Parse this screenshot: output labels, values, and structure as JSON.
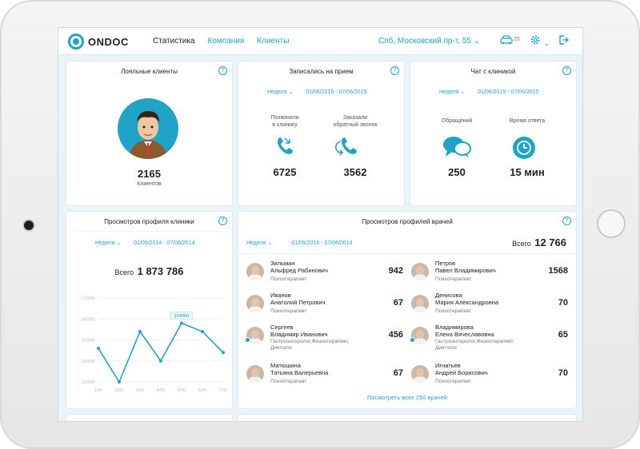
{
  "app": {
    "logo": "ONDOC",
    "nav": [
      "Статистика",
      "Компания",
      "Клиенты"
    ],
    "address": "Спб, Московский пр-т, 55 ⌄",
    "notification_count": "25",
    "icons": {
      "car": "car-icon",
      "settings": "gear-icon",
      "logout": "exit-icon"
    }
  },
  "loyal": {
    "title": "Лояльные клиенты",
    "count": "2165",
    "count_label": "Клиентов"
  },
  "appointments": {
    "title": "Записались на прием",
    "period": "Неделя ⌄",
    "dates": "01/06/2015 - 07/06/2015",
    "called_label": "Позвонили\nв клинику",
    "callback_label": "Заказали\nобратный звонок",
    "called": "6725",
    "callback": "3562"
  },
  "chat": {
    "title": "Чат с клиникой",
    "period": "Неделя ⌄",
    "dates": "01/06/2015 - 07/06/2015",
    "requests_label": "Обращений",
    "response_label": "Время ответа",
    "requests": "250",
    "response": "15 мин"
  },
  "clinic_views": {
    "title": "Просмотров профиля клиники",
    "period": "Неделя ⌄",
    "dates": "01/05/2014 - 07/06/2014",
    "total_label": "Всего",
    "total": "1 873 786"
  },
  "chart_data": {
    "type": "line",
    "x": [
      "1/05",
      "2/05",
      "3/05",
      "4/05",
      "5/05",
      "6/05",
      "7/05"
    ],
    "values": [
      158000,
      150000,
      162000,
      155000,
      164000,
      162000,
      157000
    ],
    "point_label": "164000",
    "ylim": [
      150000,
      170000
    ],
    "yticks": [
      "170000",
      "165000",
      "160000",
      "155000",
      "150000"
    ],
    "color": "#1fa3c7",
    "grid": true
  },
  "doctor_views": {
    "title": "Просмотров профилей врачей",
    "period": "Неделя ⌄",
    "dates": "01/05/2014 - 07/06/2014",
    "total_label": "Всего",
    "total": "12 766",
    "link": "Посмотреть всех 250 врачей",
    "doctors": [
      {
        "name": "Зильман\nАльфред Рабинович",
        "spec": "Психотерапевт",
        "count": "942"
      },
      {
        "name": "Петров\nПавел Владимирович",
        "spec": "Психотерапевт",
        "count": "1568"
      },
      {
        "name": "Иванов\nАнатолий Петрович",
        "spec": "Психотерапевт",
        "count": "67"
      },
      {
        "name": "Денисова\nМария Александровна",
        "spec": "Психотерапевт",
        "count": "70"
      },
      {
        "name": "Сергеев\nВладимир Иванович",
        "spec": "Гастроэнтеролог,Физиотерапевт,\nДиетолог",
        "count": "456"
      },
      {
        "name": "Владимирова\nЕлена Вячеславовна",
        "spec": "Гастроэнтеролог,Физиотерапевт,\nДиетолог",
        "count": "65"
      },
      {
        "name": "Матюшина\nТатьяна Валерьевна",
        "spec": "Психотерапевт",
        "count": "67"
      },
      {
        "name": "Игнатьев\nАндрей Борисович",
        "spec": "Психотерапевт",
        "count": "70"
      }
    ]
  }
}
